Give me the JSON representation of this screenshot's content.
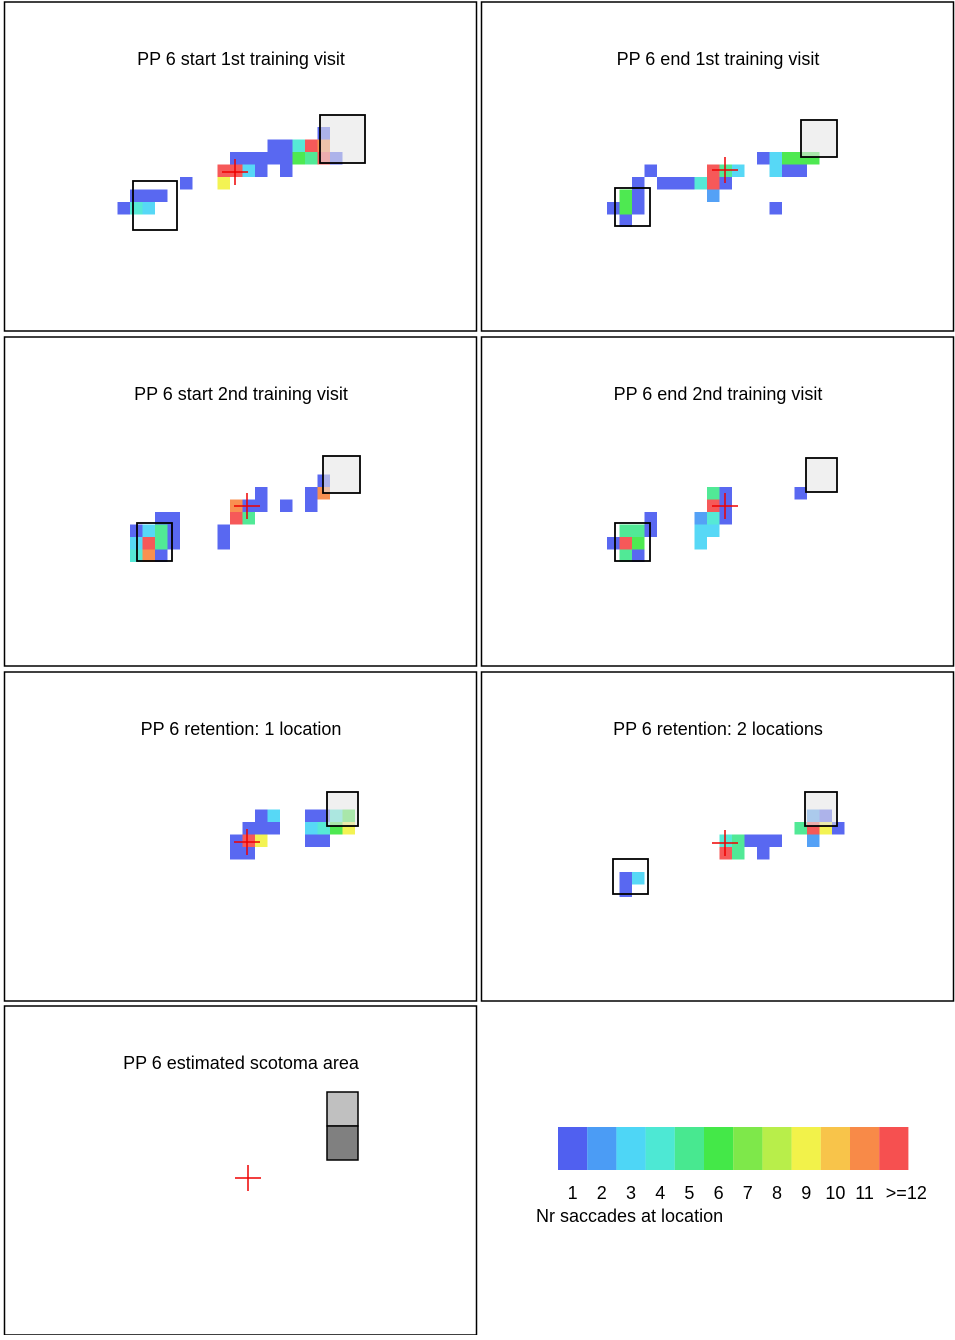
{
  "chart_data": [
    {
      "type": "heatmap",
      "title": "PP 6 start 1st training visit",
      "x": [
        9,
        10,
        11,
        10,
        11,
        12,
        14,
        17,
        17,
        18,
        19,
        18,
        19,
        20,
        20,
        21,
        22,
        21,
        22,
        22,
        23,
        24,
        25,
        23,
        24,
        25,
        26,
        25
      ],
      "y": [
        16,
        16,
        16,
        15,
        15,
        15,
        14,
        13,
        14,
        13,
        13,
        12,
        12,
        12,
        13,
        11,
        11,
        12,
        12,
        13,
        11,
        11,
        11,
        12,
        12,
        12,
        12,
        10
      ],
      "values": [
        1,
        4,
        3,
        1,
        1,
        1,
        1,
        12,
        9,
        12,
        3,
        1,
        1,
        1,
        1,
        1,
        1,
        1,
        1,
        1,
        4,
        12,
        11,
        6,
        5,
        12,
        1,
        1
      ]
    },
    {
      "type": "heatmap",
      "title": "PP 6 end 1st training visit",
      "x": [
        10,
        11,
        11,
        12,
        12,
        11,
        12,
        13,
        14,
        15,
        16,
        17,
        18,
        18,
        19,
        18,
        19,
        20,
        22,
        23,
        23,
        24,
        25,
        26,
        24,
        25,
        23
      ],
      "y": [
        16,
        15,
        16,
        16,
        15,
        17,
        14,
        13,
        14,
        14,
        14,
        14,
        13,
        14,
        13,
        15,
        14,
        13,
        12,
        12,
        13,
        12,
        12,
        12,
        13,
        13,
        16
      ],
      "values": [
        1,
        6,
        6,
        1,
        1,
        1,
        1,
        1,
        1,
        1,
        1,
        4,
        12,
        12,
        5,
        2,
        1,
        3,
        1,
        3,
        3,
        6,
        6,
        6,
        1,
        1,
        1
      ]
    },
    {
      "type": "heatmap",
      "title": "PP 6 start 2nd training visit",
      "x": [
        10,
        11,
        12,
        13,
        12,
        13,
        10,
        11,
        12,
        13,
        10,
        11,
        12,
        17,
        17,
        18,
        18,
        19,
        19,
        20,
        20,
        22,
        24,
        24,
        25,
        25
      ],
      "y": [
        15,
        15,
        14,
        14,
        15,
        15,
        16,
        16,
        16,
        16,
        17,
        17,
        17,
        15,
        16,
        13,
        14,
        14,
        13,
        13,
        12,
        13,
        13,
        12,
        12,
        11
      ],
      "values": [
        1,
        3,
        1,
        1,
        5,
        1,
        3,
        12,
        5,
        1,
        4,
        11,
        1,
        1,
        1,
        11,
        12,
        5,
        1,
        1,
        1,
        1,
        1,
        1,
        11,
        1
      ]
    },
    {
      "type": "heatmap",
      "title": "PP 6 end 2nd training visit",
      "x": [
        10,
        11,
        12,
        13,
        13,
        11,
        12,
        11,
        12,
        17,
        18,
        17,
        18,
        17,
        18,
        19,
        18,
        19,
        19,
        25
      ],
      "y": [
        16,
        15,
        15,
        14,
        15,
        16,
        16,
        17,
        17,
        14,
        14,
        15,
        15,
        16,
        13,
        13,
        12,
        12,
        14,
        12
      ],
      "values": [
        1,
        5,
        5,
        1,
        1,
        12,
        6,
        5,
        1,
        2,
        4,
        3,
        3,
        3,
        12,
        1,
        5,
        1,
        1,
        1
      ]
    },
    {
      "type": "heatmap",
      "title": "PP 6 retention: 1 location",
      "x": [
        18,
        19,
        20,
        19,
        20,
        21,
        20,
        21,
        19,
        18,
        24,
        25,
        26,
        27,
        24,
        25,
        26,
        27,
        25,
        24
      ],
      "y": [
        13,
        13,
        13,
        12,
        12,
        12,
        11,
        11,
        14,
        14,
        11,
        11,
        11,
        11,
        12,
        12,
        12,
        12,
        13,
        13
      ],
      "values": [
        1,
        12,
        9,
        1,
        1,
        1,
        1,
        3,
        1,
        1,
        1,
        1,
        4,
        6,
        3,
        4,
        6,
        9,
        1,
        1
      ]
    },
    {
      "type": "heatmap",
      "title": "PP 6 retention: 2 locations",
      "x": [
        11,
        12,
        11,
        19,
        20,
        21,
        22,
        23,
        19,
        20,
        22,
        25,
        26,
        27,
        28,
        26,
        27,
        26
      ],
      "y": [
        16,
        16,
        17,
        13,
        13,
        13,
        13,
        13,
        14,
        14,
        14,
        12,
        12,
        12,
        12,
        11,
        11,
        13
      ],
      "values": [
        1,
        3,
        1,
        4,
        5,
        1,
        1,
        1,
        12,
        5,
        1,
        5,
        12,
        9,
        1,
        2,
        1,
        2
      ]
    },
    {
      "type": "scotoma",
      "title": "PP 6 estimated scotoma area"
    },
    {
      "type": "colorbar",
      "colors": [
        "#5060f0",
        "#4b9cf5",
        "#4ed6f6",
        "#4de8d4",
        "#48e890",
        "#44e848",
        "#7ee84a",
        "#b8ee4a",
        "#f2f24a",
        "#f8c44a",
        "#f88a48",
        "#f65050"
      ],
      "ticks": [
        1,
        2,
        3,
        4,
        5,
        6,
        7,
        8,
        9,
        10,
        11,
        {
          "value": 12,
          "label": ">=12"
        }
      ],
      "label": "Nr saccades at location"
    }
  ]
}
